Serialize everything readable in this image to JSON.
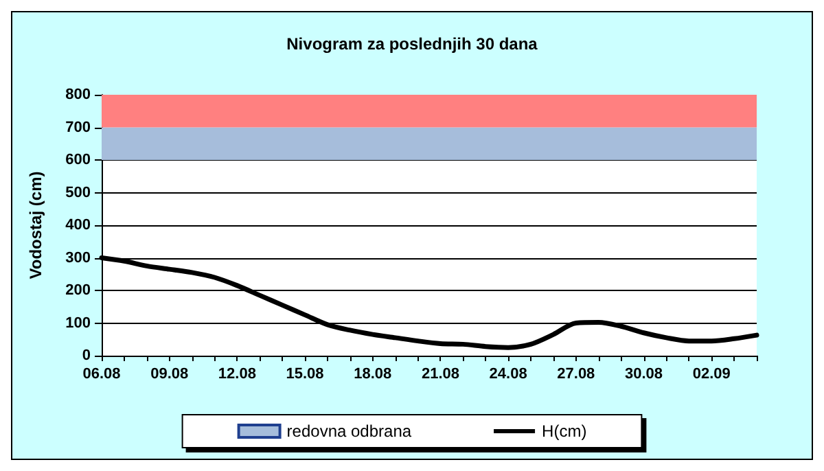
{
  "chart_data": {
    "type": "line",
    "title": "Nivogram za poslednjih 30 dana",
    "ylabel": "Vodostaj (cm)",
    "categories": [
      "06.08",
      null,
      null,
      "09.08",
      null,
      null,
      "12.08",
      null,
      null,
      "15.08",
      null,
      null,
      "18.08",
      null,
      null,
      "21.08",
      null,
      null,
      "24.08",
      null,
      null,
      "27.08",
      null,
      null,
      "30.08",
      null,
      null,
      "02.09",
      null,
      null
    ],
    "series": [
      {
        "name": "H(cm)",
        "color": "#000000",
        "values": [
          300,
          290,
          275,
          265,
          255,
          240,
          215,
          185,
          155,
          125,
          95,
          78,
          65,
          55,
          45,
          37,
          35,
          28,
          25,
          35,
          65,
          100,
          102,
          90,
          70,
          55,
          45,
          45,
          52,
          63
        ]
      }
    ],
    "bands": [
      {
        "axis": "y",
        "from": 600,
        "to": 700,
        "label": "redovna odbrana",
        "color": "#a6bddb"
      },
      {
        "axis": "y",
        "from": 700,
        "to": 800,
        "color": "#ff8080"
      }
    ],
    "ylim": [
      0,
      800
    ],
    "yticks": [
      0,
      100,
      200,
      300,
      400,
      500,
      600,
      700,
      800
    ],
    "grid": "y",
    "legend": "bottom",
    "marker": "none",
    "line_style": "solid"
  }
}
